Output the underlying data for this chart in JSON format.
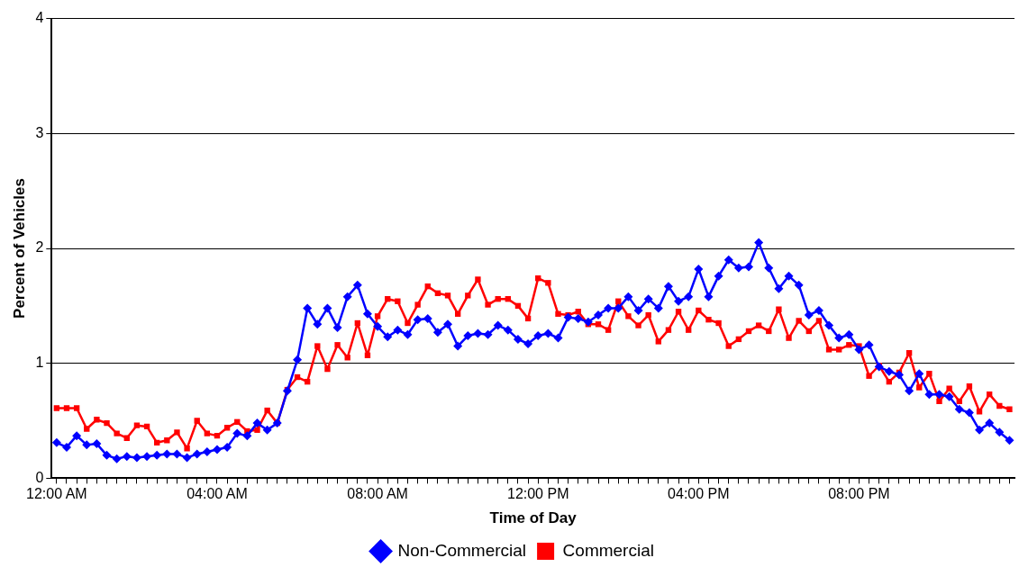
{
  "chart_data": {
    "type": "line",
    "xlabel": "Time of Day",
    "ylabel": "Percent of Vehicles",
    "categories": [
      "12:00 AM",
      null,
      null,
      null,
      null,
      null,
      null,
      null,
      null,
      null,
      null,
      null,
      null,
      null,
      null,
      null,
      "04:00 AM",
      null,
      null,
      null,
      null,
      null,
      null,
      null,
      null,
      null,
      null,
      null,
      null,
      null,
      null,
      null,
      "08:00 AM",
      null,
      null,
      null,
      null,
      null,
      null,
      null,
      null,
      null,
      null,
      null,
      null,
      null,
      null,
      null,
      "12:00 PM",
      null,
      null,
      null,
      null,
      null,
      null,
      null,
      null,
      null,
      null,
      null,
      null,
      null,
      null,
      null,
      "04:00 PM",
      null,
      null,
      null,
      null,
      null,
      null,
      null,
      null,
      null,
      null,
      null,
      null,
      null,
      null,
      null,
      "08:00 PM",
      null,
      null,
      null,
      null,
      null,
      null,
      null,
      null,
      null,
      null,
      null,
      null,
      null,
      null,
      null
    ],
    "series": [
      {
        "name": "Non-Commercial",
        "color": "#0000ff",
        "marker": "diamond",
        "values": [
          0.31,
          0.27,
          0.37,
          0.29,
          0.3,
          0.2,
          0.17,
          0.19,
          0.18,
          0.19,
          0.2,
          0.21,
          0.21,
          0.18,
          0.21,
          0.23,
          0.25,
          0.27,
          0.39,
          0.37,
          0.48,
          0.42,
          0.48,
          0.76,
          1.03,
          1.48,
          1.34,
          1.48,
          1.31,
          1.58,
          1.68,
          1.43,
          1.32,
          1.23,
          1.29,
          1.25,
          1.38,
          1.39,
          1.27,
          1.34,
          1.15,
          1.24,
          1.26,
          1.25,
          1.33,
          1.29,
          1.21,
          1.17,
          1.24,
          1.26,
          1.22,
          1.4,
          1.39,
          1.36,
          1.42,
          1.48,
          1.48,
          1.58,
          1.46,
          1.56,
          1.48,
          1.67,
          1.54,
          1.58,
          1.82,
          1.58,
          1.76,
          1.9,
          1.83,
          1.84,
          2.05,
          1.83,
          1.65,
          1.76,
          1.68,
          1.42,
          1.46,
          1.33,
          1.22,
          1.25,
          1.12,
          1.16,
          0.97,
          0.93,
          0.9,
          0.76,
          0.91,
          0.73,
          0.73,
          0.71,
          0.6,
          0.57,
          0.42,
          0.48,
          0.4,
          0.33
        ]
      },
      {
        "name": "Commercial",
        "color": "#ff0000",
        "marker": "square",
        "values": [
          0.61,
          0.61,
          0.61,
          0.43,
          0.51,
          0.48,
          0.39,
          0.35,
          0.46,
          0.45,
          0.31,
          0.33,
          0.4,
          0.26,
          0.5,
          0.39,
          0.37,
          0.44,
          0.49,
          0.41,
          0.42,
          0.59,
          0.48,
          0.77,
          0.88,
          0.84,
          1.15,
          0.95,
          1.16,
          1.05,
          1.35,
          1.07,
          1.41,
          1.56,
          1.54,
          1.35,
          1.51,
          1.67,
          1.61,
          1.59,
          1.43,
          1.59,
          1.73,
          1.51,
          1.56,
          1.56,
          1.5,
          1.39,
          1.74,
          1.7,
          1.43,
          1.42,
          1.45,
          1.34,
          1.34,
          1.29,
          1.54,
          1.41,
          1.33,
          1.42,
          1.19,
          1.29,
          1.45,
          1.29,
          1.46,
          1.38,
          1.35,
          1.15,
          1.21,
          1.28,
          1.33,
          1.28,
          1.47,
          1.22,
          1.37,
          1.28,
          1.37,
          1.12,
          1.12,
          1.16,
          1.15,
          0.89,
          0.98,
          0.84,
          0.92,
          1.09,
          0.79,
          0.91,
          0.67,
          0.78,
          0.67,
          0.8,
          0.58,
          0.73,
          0.63,
          0.6
        ]
      }
    ],
    "ylim": [
      0,
      4
    ],
    "yticks": [
      0,
      1,
      2,
      3,
      4
    ],
    "grid": "y",
    "legend": "bottom",
    "line_style": "solid"
  }
}
